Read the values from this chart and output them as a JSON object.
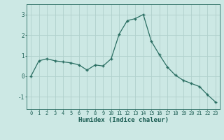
{
  "x": [
    0,
    1,
    2,
    3,
    4,
    5,
    6,
    7,
    8,
    9,
    10,
    11,
    12,
    13,
    14,
    15,
    16,
    17,
    18,
    19,
    20,
    21,
    22,
    23
  ],
  "y": [
    0.0,
    0.75,
    0.85,
    0.75,
    0.7,
    0.65,
    0.55,
    0.3,
    0.55,
    0.5,
    0.85,
    2.05,
    2.7,
    2.8,
    3.0,
    1.7,
    1.05,
    0.45,
    0.05,
    -0.2,
    -0.35,
    -0.5,
    -0.9,
    -1.25
  ],
  "xlabel": "Humidex (Indice chaleur)",
  "ylim": [
    -1.6,
    3.5
  ],
  "xlim": [
    -0.5,
    23.5
  ],
  "yticks": [
    -1,
    0,
    1,
    2,
    3
  ],
  "xticks": [
    0,
    1,
    2,
    3,
    4,
    5,
    6,
    7,
    8,
    9,
    10,
    11,
    12,
    13,
    14,
    15,
    16,
    17,
    18,
    19,
    20,
    21,
    22,
    23
  ],
  "line_color": "#2a6e62",
  "marker_color": "#2a6e62",
  "bg_color": "#cce8e4",
  "grid_color": "#b0d0cc",
  "axis_color": "#2a6e62",
  "label_color": "#1a5c52",
  "tick_label_fontsize": 5.0,
  "xlabel_fontsize": 6.5
}
